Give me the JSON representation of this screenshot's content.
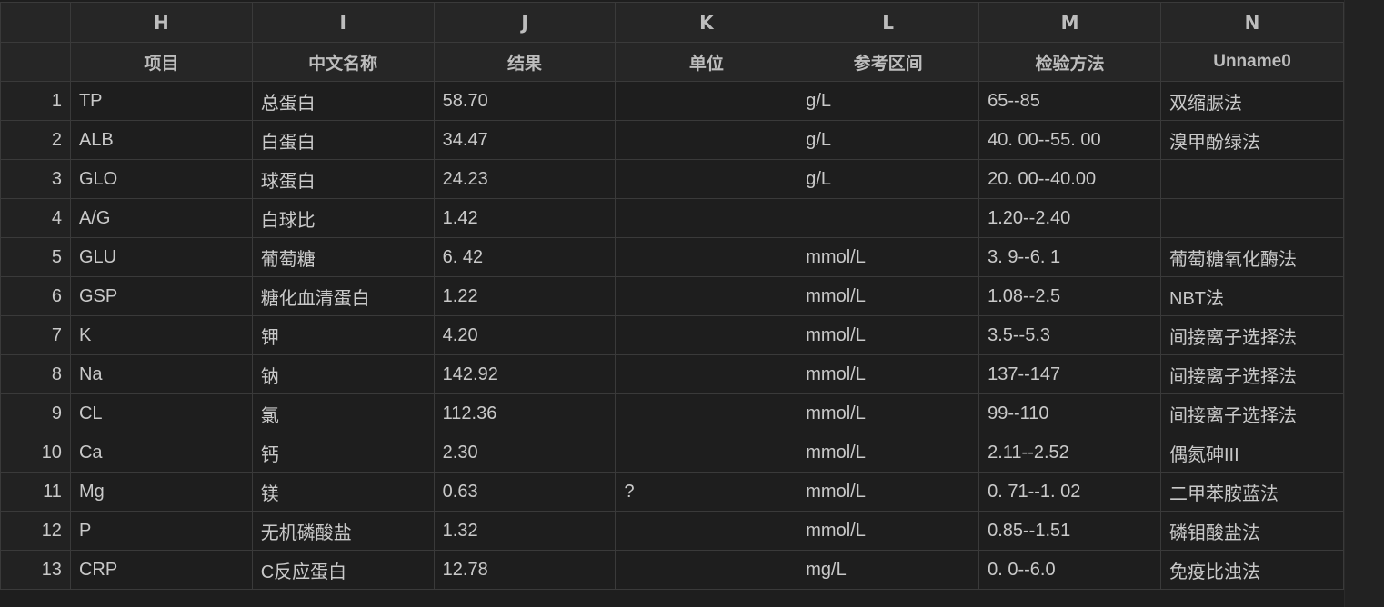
{
  "columns": {
    "letters": [
      "H",
      "I",
      "J",
      "K",
      "L",
      "M",
      "N"
    ],
    "names": [
      "项目",
      "中文名称",
      "结果",
      "单位",
      "参考区间",
      "检验方法",
      "Unname0"
    ]
  },
  "rows": [
    {
      "num": "1",
      "cells": [
        "TP",
        "总蛋白",
        "58.70",
        "",
        "g/L",
        "65--85",
        "双缩脲法"
      ]
    },
    {
      "num": "2",
      "cells": [
        "ALB",
        "白蛋白",
        "34.47",
        "",
        "g/L",
        "40. 00--55. 00",
        "溴甲酚绿法"
      ]
    },
    {
      "num": "3",
      "cells": [
        "GLO",
        "球蛋白",
        "24.23",
        "",
        "g/L",
        "20. 00--40.00",
        ""
      ]
    },
    {
      "num": "4",
      "cells": [
        "A/G",
        "白球比",
        "1.42",
        "",
        "",
        "1.20--2.40",
        ""
      ]
    },
    {
      "num": "5",
      "cells": [
        "GLU",
        "葡萄糖",
        "6. 42",
        "",
        "mmol/L",
        "3. 9--6. 1",
        "葡萄糖氧化酶法"
      ]
    },
    {
      "num": "6",
      "cells": [
        "GSP",
        "糖化血清蛋白",
        "1.22",
        "",
        "mmol/L",
        "1.08--2.5",
        "NBT法"
      ]
    },
    {
      "num": "7",
      "cells": [
        "K",
        "钾",
        "4.20",
        "",
        "mmol/L",
        "3.5--5.3",
        "间接离子选择法"
      ]
    },
    {
      "num": "8",
      "cells": [
        "Na",
        "钠",
        "142.92",
        "",
        "mmol/L",
        "137--147",
        "间接离子选择法"
      ]
    },
    {
      "num": "9",
      "cells": [
        "CL",
        "氯",
        "112.36",
        "",
        "mmol/L",
        "99--110",
        "间接离子选择法"
      ]
    },
    {
      "num": "10",
      "cells": [
        "Ca",
        "钙",
        "2.30",
        "",
        "mmol/L",
        "2.11--2.52",
        "偶氮砷III"
      ]
    },
    {
      "num": "11",
      "cells": [
        "Mg",
        "镁",
        "0.63",
        "?",
        "mmol/L",
        "0. 71--1. 02",
        "二甲苯胺蓝法"
      ]
    },
    {
      "num": "12",
      "cells": [
        "P",
        "无机磷酸盐",
        "1.32",
        "",
        "mmol/L",
        "0.85--1.51",
        "磷钼酸盐法"
      ]
    },
    {
      "num": "13",
      "cells": [
        "CRP",
        "C反应蛋白",
        "12.78",
        "",
        "mg/L",
        "0. 0--6.0",
        "免疫比浊法"
      ]
    }
  ]
}
